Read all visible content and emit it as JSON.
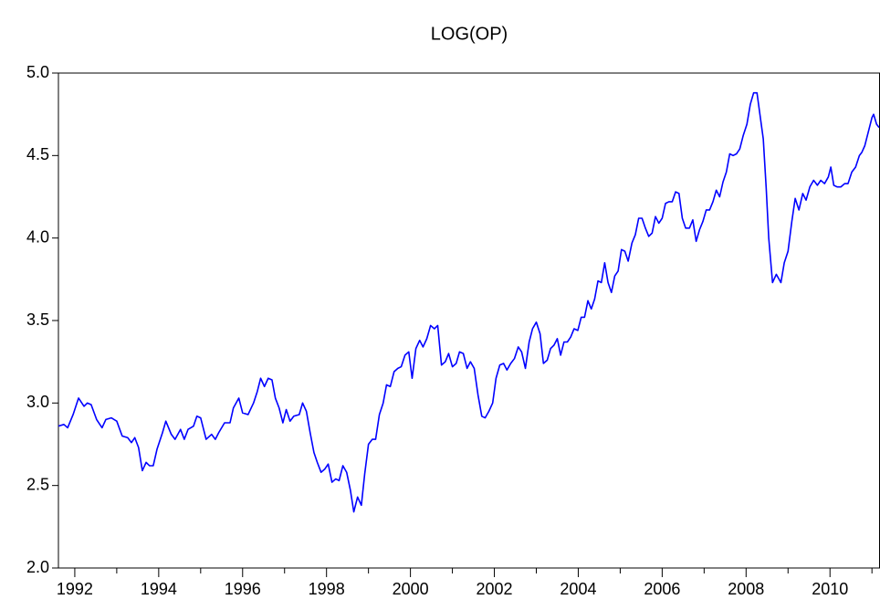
{
  "chart_data": {
    "type": "line",
    "title": "LOG(OP)",
    "x": [
      1991.61,
      1991.74,
      1991.83,
      1991.96,
      1992.09,
      1992.22,
      1992.3,
      1992.39,
      1992.52,
      1992.65,
      1992.74,
      1992.87,
      1993.0,
      1993.13,
      1993.26,
      1993.35,
      1993.43,
      1993.52,
      1993.61,
      1993.7,
      1993.78,
      1993.87,
      1993.96,
      1994.09,
      1994.17,
      1994.3,
      1994.39,
      1994.52,
      1994.61,
      1994.7,
      1994.83,
      1994.91,
      1995.0,
      1995.13,
      1995.26,
      1995.35,
      1995.43,
      1995.57,
      1995.7,
      1995.78,
      1995.91,
      1996.0,
      1996.13,
      1996.26,
      1996.35,
      1996.43,
      1996.52,
      1996.61,
      1996.7,
      1996.78,
      1996.87,
      1996.96,
      1997.04,
      1997.13,
      1997.22,
      1997.35,
      1997.43,
      1997.52,
      1997.61,
      1997.7,
      1997.78,
      1997.87,
      1997.96,
      1998.04,
      1998.13,
      1998.22,
      1998.3,
      1998.39,
      1998.48,
      1998.57,
      1998.65,
      1998.74,
      1998.83,
      1998.91,
      1999.0,
      1999.09,
      1999.17,
      1999.26,
      1999.35,
      1999.43,
      1999.52,
      1999.61,
      1999.7,
      1999.78,
      1999.87,
      1999.96,
      2000.04,
      2000.13,
      2000.22,
      2000.3,
      2000.39,
      2000.48,
      2000.57,
      2000.65,
      2000.74,
      2000.83,
      2000.91,
      2001.0,
      2001.09,
      2001.17,
      2001.26,
      2001.35,
      2001.43,
      2001.52,
      2001.61,
      2001.7,
      2001.78,
      2001.87,
      2001.96,
      2002.04,
      2002.13,
      2002.22,
      2002.3,
      2002.39,
      2002.48,
      2002.57,
      2002.65,
      2002.74,
      2002.83,
      2002.91,
      2003.0,
      2003.09,
      2003.17,
      2003.26,
      2003.34,
      2003.42,
      2003.5,
      2003.58,
      2003.66,
      2003.74,
      2003.82,
      2003.9,
      2003.99,
      2004.07,
      2004.15,
      2004.23,
      2004.31,
      2004.39,
      2004.47,
      2004.55,
      2004.63,
      2004.71,
      2004.79,
      2004.87,
      2004.95,
      2005.03,
      2005.11,
      2005.19,
      2005.28,
      2005.36,
      2005.44,
      2005.52,
      2005.6,
      2005.68,
      2005.76,
      2005.84,
      2005.92,
      2006.0,
      2006.08,
      2006.16,
      2006.24,
      2006.32,
      2006.4,
      2006.48,
      2006.56,
      2006.65,
      2006.73,
      2006.81,
      2006.89,
      2006.97,
      2007.05,
      2007.13,
      2007.21,
      2007.29,
      2007.37,
      2007.45,
      2007.53,
      2007.61,
      2007.69,
      2007.77,
      2007.85,
      2007.93,
      2008.02,
      2008.1,
      2008.18,
      2008.26,
      2008.41,
      2008.48,
      2008.54,
      2008.63,
      2008.72,
      2008.83,
      2008.91,
      2009.0,
      2009.09,
      2009.17,
      2009.26,
      2009.35,
      2009.43,
      2009.52,
      2009.61,
      2009.7,
      2009.78,
      2009.87,
      2009.96,
      2010.02,
      2010.09,
      2010.17,
      2010.26,
      2010.35,
      2010.43,
      2010.52,
      2010.61,
      2010.7,
      2010.76,
      2010.83,
      2010.91,
      2011.0,
      2011.04,
      2011.11,
      2011.17
    ],
    "series": [
      {
        "name": "LOG(OP)",
        "color": "#0000ff",
        "values": [
          2.86,
          2.87,
          2.85,
          2.93,
          3.03,
          2.98,
          3.0,
          2.99,
          2.9,
          2.85,
          2.9,
          2.91,
          2.89,
          2.8,
          2.79,
          2.76,
          2.79,
          2.73,
          2.59,
          2.64,
          2.62,
          2.62,
          2.72,
          2.82,
          2.89,
          2.81,
          2.78,
          2.84,
          2.78,
          2.84,
          2.86,
          2.92,
          2.91,
          2.78,
          2.81,
          2.78,
          2.82,
          2.88,
          2.88,
          2.97,
          3.03,
          2.94,
          2.93,
          3.0,
          3.07,
          3.15,
          3.1,
          3.15,
          3.14,
          3.03,
          2.97,
          2.88,
          2.96,
          2.89,
          2.92,
          2.93,
          3.0,
          2.95,
          2.82,
          2.7,
          2.64,
          2.58,
          2.6,
          2.63,
          2.52,
          2.54,
          2.53,
          2.62,
          2.58,
          2.47,
          2.34,
          2.43,
          2.38,
          2.57,
          2.75,
          2.78,
          2.78,
          2.93,
          3.0,
          3.11,
          3.1,
          3.19,
          3.21,
          3.22,
          3.29,
          3.31,
          3.15,
          3.33,
          3.38,
          3.34,
          3.39,
          3.47,
          3.45,
          3.47,
          3.23,
          3.25,
          3.3,
          3.22,
          3.24,
          3.31,
          3.3,
          3.21,
          3.25,
          3.21,
          3.05,
          2.92,
          2.91,
          2.95,
          3.0,
          3.15,
          3.23,
          3.24,
          3.2,
          3.24,
          3.27,
          3.34,
          3.31,
          3.21,
          3.37,
          3.45,
          3.49,
          3.42,
          3.24,
          3.26,
          3.33,
          3.35,
          3.39,
          3.29,
          3.37,
          3.37,
          3.4,
          3.45,
          3.44,
          3.52,
          3.52,
          3.62,
          3.57,
          3.63,
          3.74,
          3.73,
          3.85,
          3.73,
          3.67,
          3.77,
          3.8,
          3.93,
          3.92,
          3.86,
          3.97,
          4.02,
          4.12,
          4.12,
          4.06,
          4.01,
          4.03,
          4.13,
          4.09,
          4.12,
          4.21,
          4.22,
          4.22,
          4.28,
          4.27,
          4.12,
          4.06,
          4.06,
          4.11,
          3.98,
          4.05,
          4.1,
          4.17,
          4.17,
          4.22,
          4.29,
          4.25,
          4.34,
          4.4,
          4.51,
          4.5,
          4.51,
          4.54,
          4.62,
          4.69,
          4.81,
          4.88,
          4.88,
          4.6,
          4.3,
          4.0,
          3.73,
          3.78,
          3.73,
          3.85,
          3.92,
          4.1,
          4.24,
          4.17,
          4.27,
          4.23,
          4.31,
          4.35,
          4.32,
          4.35,
          4.33,
          4.37,
          4.43,
          4.32,
          4.31,
          4.31,
          4.33,
          4.33,
          4.4,
          4.43,
          4.5,
          4.52,
          4.56,
          4.64,
          4.73,
          4.75,
          4.69,
          4.67
        ]
      }
    ],
    "xlim": [
      1991.61,
      2011.17
    ],
    "xticks": [
      1992,
      1994,
      1996,
      1998,
      2000,
      2002,
      2004,
      2006,
      2008,
      2010
    ],
    "xminor_ticks": [
      1993,
      1995,
      1997,
      1999,
      2001,
      2003,
      2005,
      2007,
      2009,
      2011
    ],
    "ylim": [
      2,
      5
    ],
    "yticks": [
      {
        "value": 2,
        "label": "2.0"
      },
      {
        "value": 2.5,
        "label": "2.5"
      },
      {
        "value": 3,
        "label": "3.0"
      },
      {
        "value": 3.5,
        "label": "3.5"
      },
      {
        "value": 4,
        "label": "4.0"
      },
      {
        "value": 4.5,
        "label": "4.5"
      },
      {
        "value": 5,
        "label": "5.0"
      }
    ],
    "grid": false
  }
}
